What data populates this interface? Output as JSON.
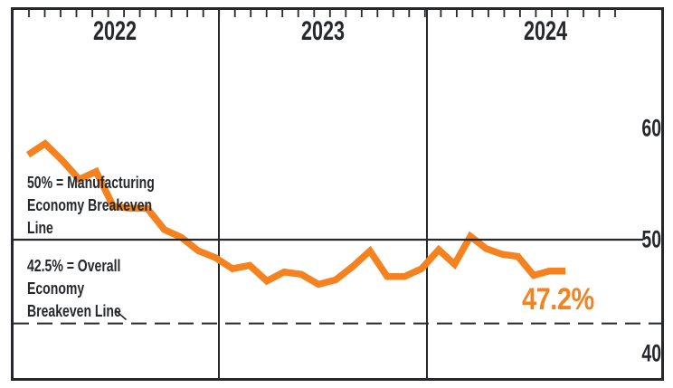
{
  "colors": {
    "line_orange": "#F5821F",
    "ink": "#26282B"
  },
  "chart": {
    "y_tick_labels": [
      "60",
      "50",
      "40"
    ],
    "annotation_manufacturing": "50% = Manufacturing\nEconomy Breakeven\nLine",
    "annotation_overall": "42.5% = Overall\nEconomy\nBreakeven Line",
    "last_value_label": "47.2%"
  },
  "chart_data": {
    "type": "line",
    "frequency": "monthly",
    "x_start": "2022-01",
    "x_end": "2024-09",
    "x_year_labels": [
      "2022",
      "2023",
      "2024"
    ],
    "values": [
      57.6,
      58.6,
      57.1,
      55.4,
      56.1,
      53.0,
      52.8,
      52.8,
      50.9,
      50.2,
      49.0,
      48.4,
      47.4,
      47.7,
      46.3,
      47.1,
      46.9,
      46.0,
      46.4,
      47.6,
      49.0,
      46.7,
      46.7,
      47.4,
      49.1,
      47.8,
      50.3,
      49.2,
      48.7,
      48.5,
      46.8,
      47.2,
      47.2
    ],
    "y_axis": {
      "side": "right",
      "tick_values": [
        60,
        50,
        40
      ],
      "ylim": [
        37.5,
        70.5
      ]
    },
    "x_axis": {
      "top_ticks": "monthly",
      "year_dividers": true
    },
    "reference_lines": [
      {
        "value": 50,
        "style": "solid",
        "label": "50% = Manufacturing Economy Breakeven Line"
      },
      {
        "value": 42.5,
        "style": "dashed",
        "label": "42.5% = Overall Economy Breakeven Line"
      }
    ],
    "last_value": 47.2,
    "last_value_label": "47.2%",
    "line_color": "#F5821F",
    "legend": "none"
  }
}
